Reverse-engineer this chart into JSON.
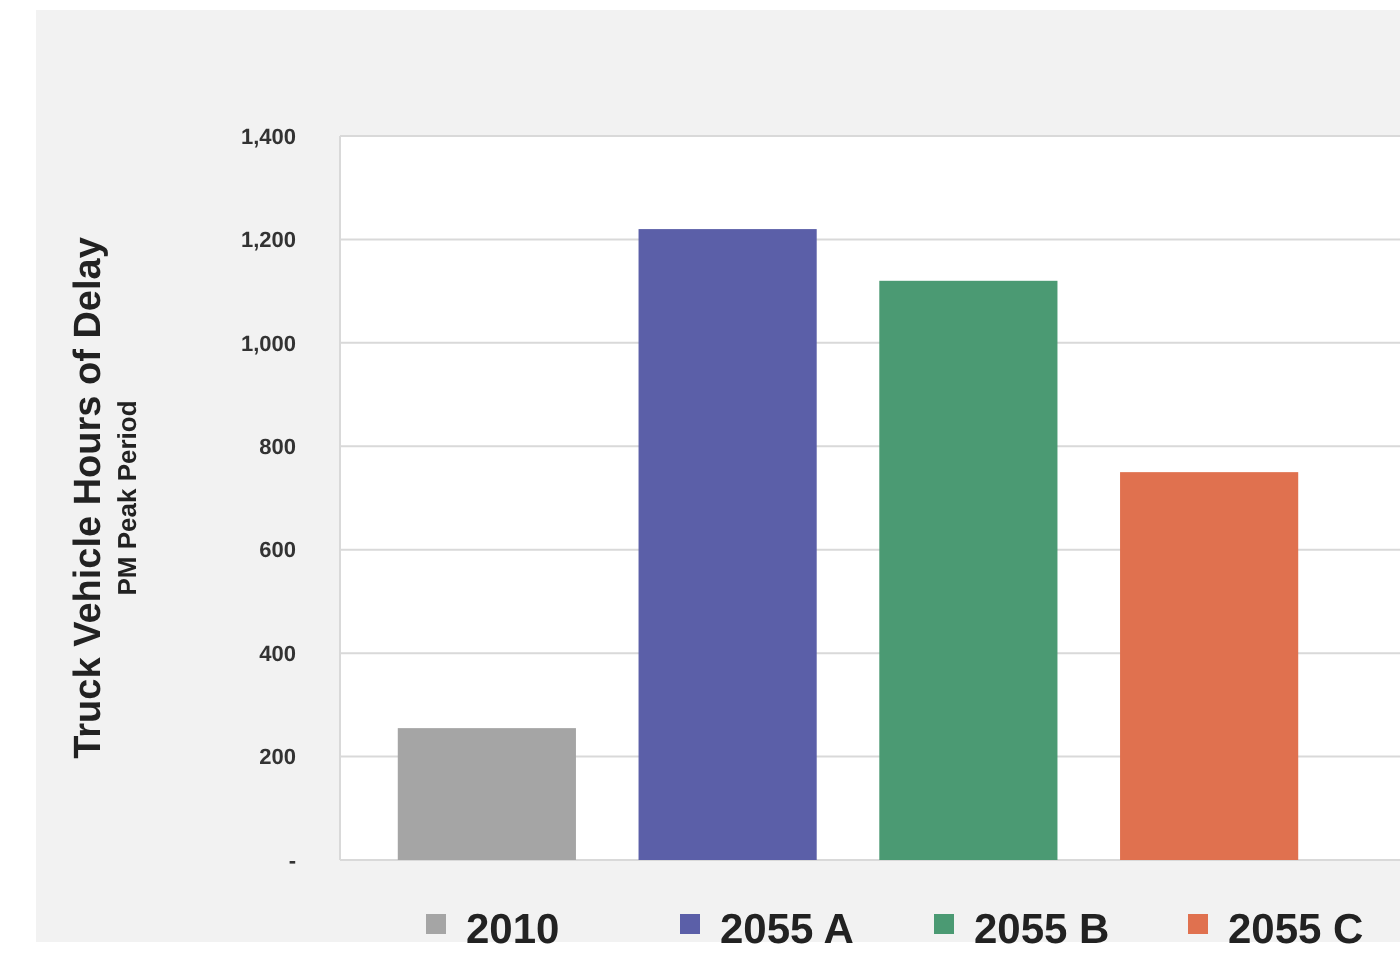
{
  "chart_data": {
    "type": "bar",
    "ylabel": "Truck Vehicle Hours of Delay",
    "annotations": [
      "PM Peak Period"
    ],
    "categories": [
      null,
      null,
      null,
      null
    ],
    "series": [
      {
        "name": "2010",
        "color": "#a5a5a5",
        "values": [
          255,
          null,
          null,
          null
        ]
      },
      {
        "name": "2055 A",
        "color": "#5b5fa8",
        "values": [
          null,
          1220,
          null,
          null
        ]
      },
      {
        "name": "2055 B",
        "color": "#4b9a73",
        "values": [
          null,
          null,
          1120,
          null
        ]
      },
      {
        "name": "2055 C",
        "color": "#e0714f",
        "values": [
          null,
          null,
          null,
          750
        ]
      }
    ],
    "ylim": [
      0,
      1400
    ],
    "yticks": [
      {
        "value": 0,
        "label": "-"
      },
      {
        "value": 200,
        "label": "200"
      },
      {
        "value": 400,
        "label": "400"
      },
      {
        "value": 600,
        "label": "600"
      },
      {
        "value": 800,
        "label": "800"
      },
      {
        "value": 1000,
        "label": "1,000"
      },
      {
        "value": 1200,
        "label": "1,200"
      },
      {
        "value": 1400,
        "label": "1,400"
      }
    ],
    "grid": "y",
    "legend": "bottom",
    "tick_labels": "y"
  }
}
